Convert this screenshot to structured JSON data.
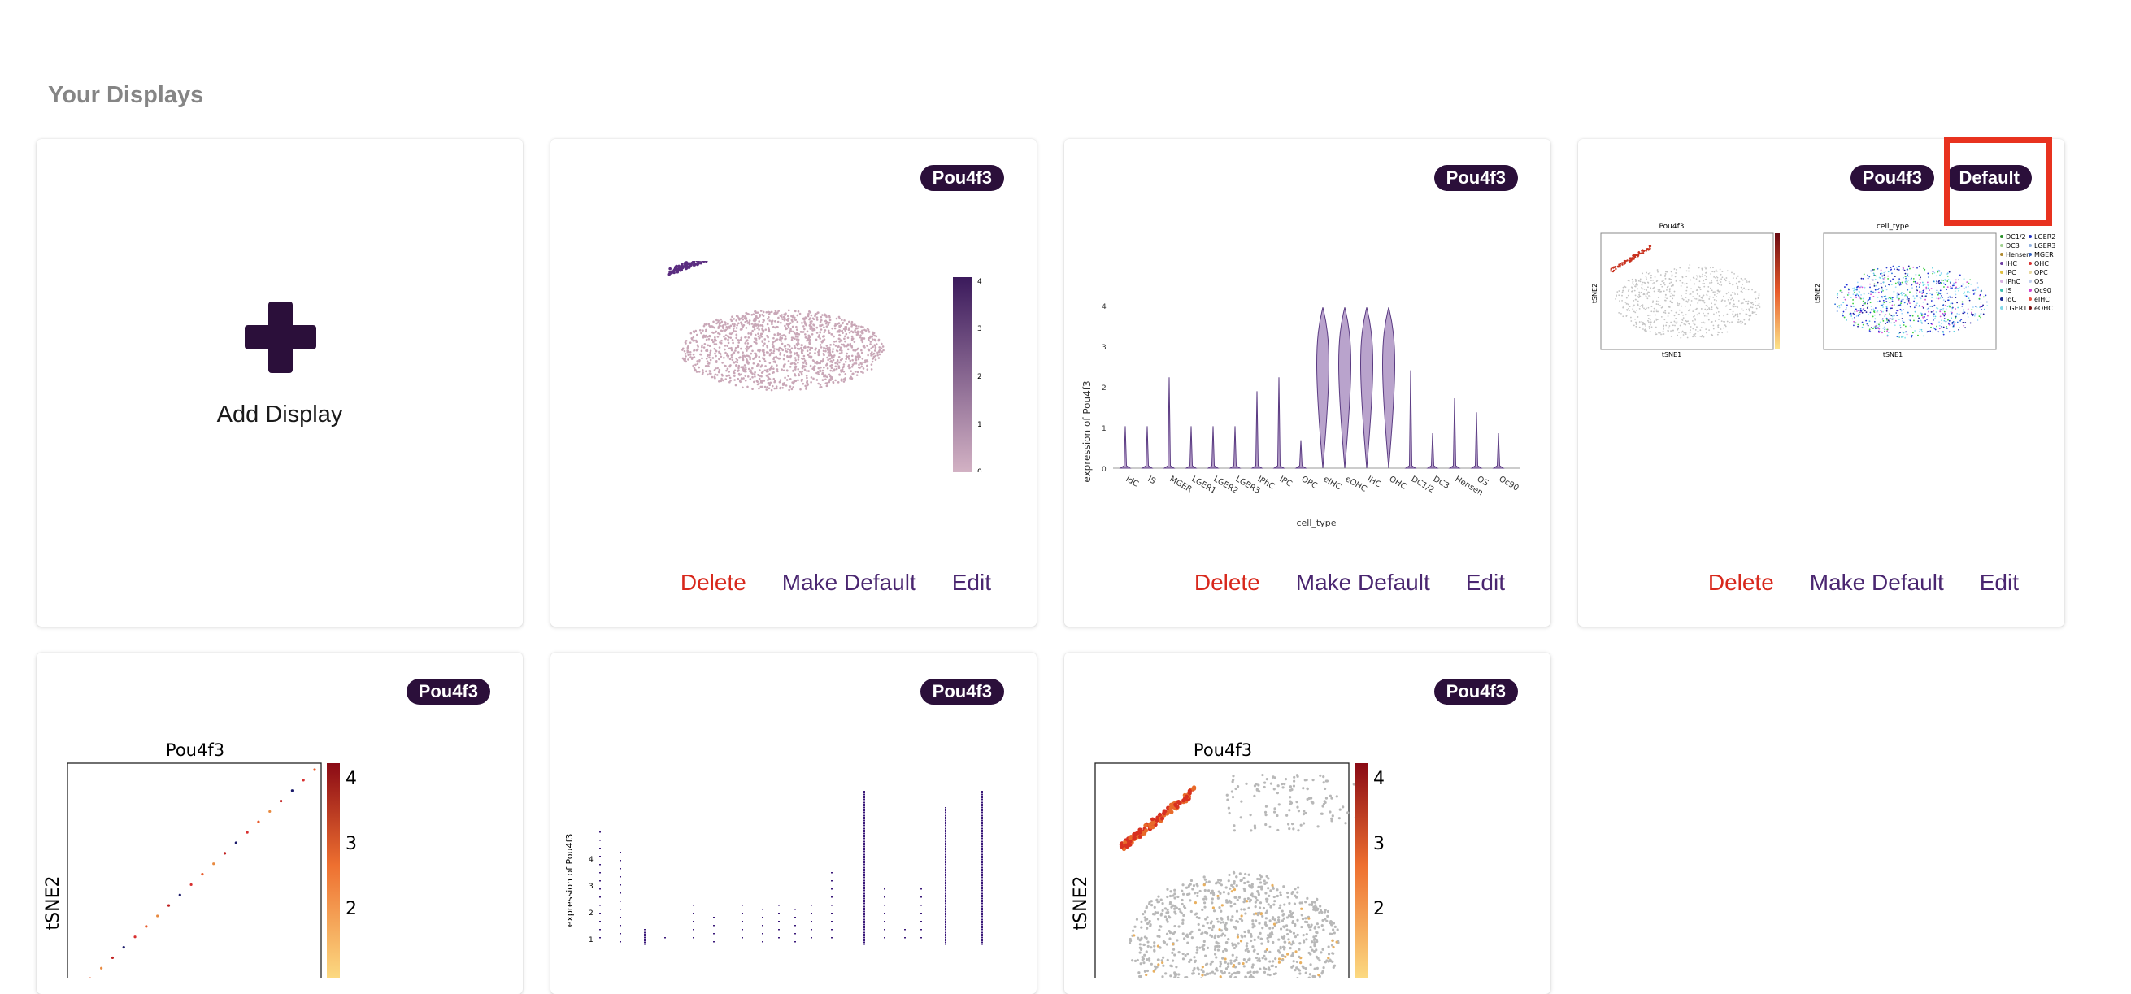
{
  "section_title": "Your Displays",
  "add_display_label": "Add Display",
  "gene_badge": "Pou4f3",
  "default_badge": "Default",
  "actions": {
    "delete": "Delete",
    "make_default": "Make Default",
    "edit": "Edit"
  },
  "colors": {
    "badge_bg": "#2b0f3a",
    "delete": "#d8281c",
    "link": "#4a2670",
    "highlight": "#e8321f"
  },
  "violin": {
    "ylabel": "expression of Pou4f3",
    "xlabel": "cell_type",
    "yticks": [
      "0",
      "1",
      "2",
      "3",
      "4"
    ],
    "categories": [
      "IdC",
      "IS",
      "MGER",
      "LGER1",
      "LGER2",
      "LGER3",
      "IPhC",
      "IPC",
      "OPC",
      "eIHC",
      "eOHC",
      "IHC",
      "OHC",
      "DC1/2",
      "DC3",
      "Hensen",
      "OS",
      "Oc90"
    ]
  },
  "umap_colorbar_ticks": [
    "0",
    "1",
    "2",
    "3",
    "4"
  ],
  "combined": {
    "left_title": "Pou4f3",
    "right_title": "cell_type",
    "xlabel": "tSNE1",
    "ylabel": "tSNE2",
    "legend_col1": [
      "DC1/2",
      "DC3",
      "Hensen",
      "IHC",
      "IPC",
      "IPhC",
      "IS",
      "IdC",
      "LGER1"
    ],
    "legend_col2": [
      "LGER2",
      "LGER3",
      "MGER",
      "OHC",
      "OPC",
      "OS",
      "Oc90",
      "eIHC",
      "eOHC"
    ]
  },
  "tsne": {
    "title": "Pou4f3",
    "ylabel": "tSNE2",
    "cbar_ticks": [
      "4",
      "3",
      "2"
    ]
  },
  "strip": {
    "ylabel": "expression of Pou4f3",
    "yticks": [
      "1",
      "2",
      "3",
      "4"
    ]
  }
}
